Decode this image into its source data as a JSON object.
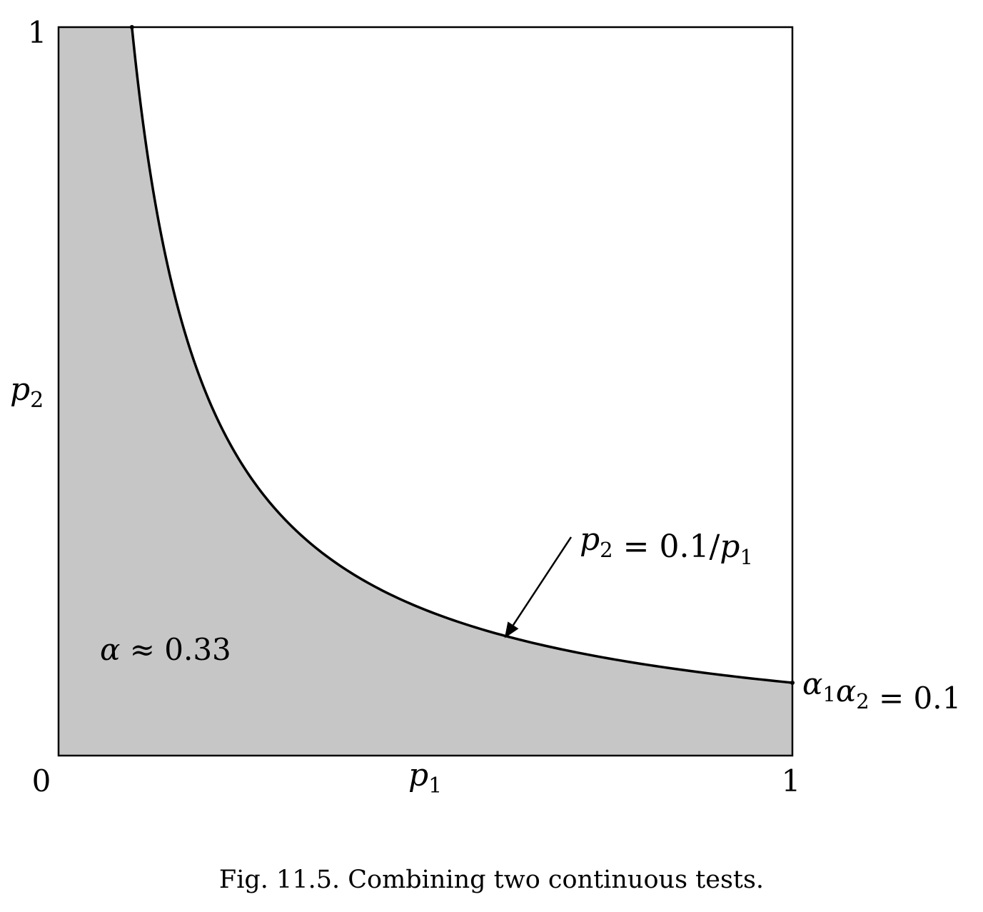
{
  "chart_data": {
    "type": "area",
    "xlabel": "p1",
    "ylabel": "p2",
    "xlim": [
      0,
      1
    ],
    "ylim": [
      0,
      1
    ],
    "x_ticks": [
      "0",
      "1"
    ],
    "y_ticks": [
      "1"
    ],
    "series": [
      {
        "x": [
          0.1,
          0.11,
          0.125,
          0.15,
          0.2,
          0.25,
          0.3,
          0.4,
          0.5,
          0.6,
          0.7,
          0.8,
          0.9,
          1.0
        ],
        "y": [
          1.0,
          0.909,
          0.8,
          0.667,
          0.5,
          0.4,
          0.333,
          0.25,
          0.2,
          0.167,
          0.143,
          0.125,
          0.111,
          0.1
        ]
      }
    ],
    "shaded_region_color": "#c6c6c6",
    "curve_color": "#000000",
    "annotations": {
      "curve_label": "p2 = 0.1/p1",
      "curve_label_at": [
        0.6,
        0.167
      ],
      "alpha_label": "α ≈ 0.33",
      "endpoint_label": "α1α2 = 0.1",
      "endpoint_at": [
        1.0,
        0.1
      ]
    },
    "grid": false
  },
  "caption": "Fig. 11.5. Combining two continuous tests."
}
